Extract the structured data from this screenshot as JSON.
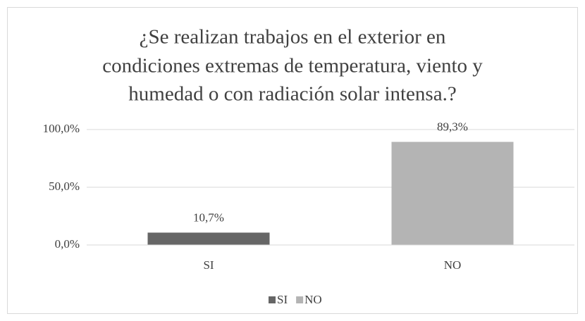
{
  "chart_data": {
    "type": "bar",
    "title": [
      "¿Se realizan trabajos en el exterior en",
      "condiciones extremas de temperatura, viento y",
      "humedad o con radiación solar intensa.?"
    ],
    "categories": [
      "SI",
      "NO"
    ],
    "values": [
      10.7,
      89.3
    ],
    "value_labels": [
      "10,7%",
      "89,3%"
    ],
    "colors": [
      "#666666",
      "#b4b4b4"
    ],
    "ylim": [
      0,
      100
    ],
    "yticks": [
      {
        "value": 0,
        "label": "0,0%"
      },
      {
        "value": 50,
        "label": "50,0%"
      },
      {
        "value": 100,
        "label": "100,0%"
      }
    ],
    "grid": true,
    "legend": "bottom"
  }
}
